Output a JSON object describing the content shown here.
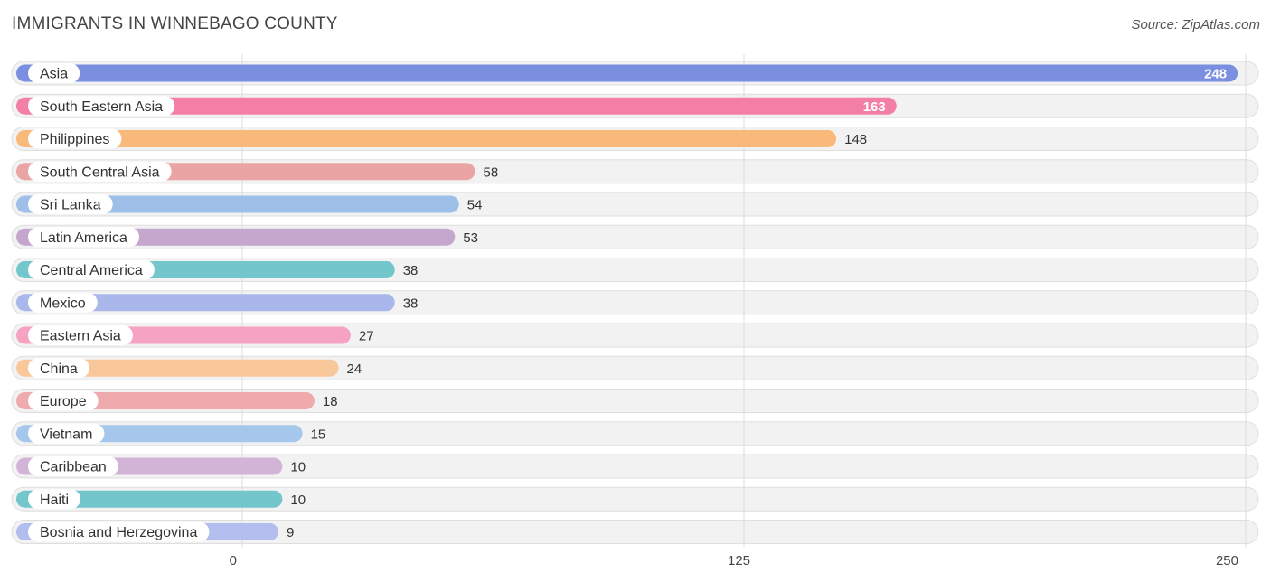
{
  "header": {
    "title": "IMMIGRANTS IN WINNEBAGO COUNTY",
    "source": "Source: ZipAtlas.com"
  },
  "chart_data": {
    "type": "bar",
    "orientation": "horizontal",
    "title": "IMMIGRANTS IN WINNEBAGO COUNTY",
    "xlim": [
      0,
      250
    ],
    "ticks": [
      0,
      125,
      250
    ],
    "grid": true,
    "categories": [
      "Asia",
      "South Eastern Asia",
      "Philippines",
      "South Central Asia",
      "Sri Lanka",
      "Latin America",
      "Central America",
      "Mexico",
      "Eastern Asia",
      "China",
      "Europe",
      "Vietnam",
      "Caribbean",
      "Haiti",
      "Bosnia and Herzegovina"
    ],
    "values": [
      248,
      163,
      148,
      58,
      54,
      53,
      38,
      38,
      27,
      24,
      18,
      15,
      10,
      10,
      9
    ],
    "colors": [
      "#7b8fe0",
      "#f47fa6",
      "#f9b97a",
      "#eba4a4",
      "#9dbfe8",
      "#c5a6cd",
      "#72c6cc",
      "#a9b7ea",
      "#f6a3c2",
      "#f9c89a",
      "#eeaaad",
      "#a5c7ec",
      "#d2b4d6",
      "#72c6cc",
      "#b3bdee"
    ]
  }
}
